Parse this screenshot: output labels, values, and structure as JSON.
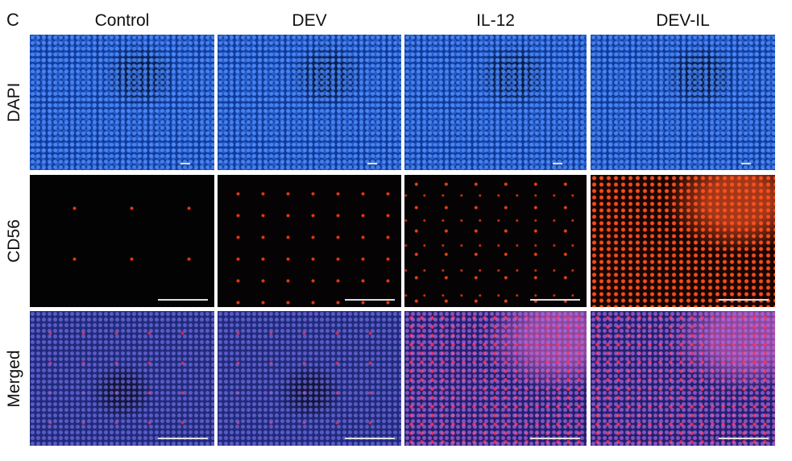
{
  "figure": {
    "panel_label": "C",
    "columns": [
      "Control",
      "DEV",
      "IL-12",
      "DEV-IL"
    ],
    "rows": [
      "DAPI",
      "CD56",
      "Merged"
    ]
  }
}
